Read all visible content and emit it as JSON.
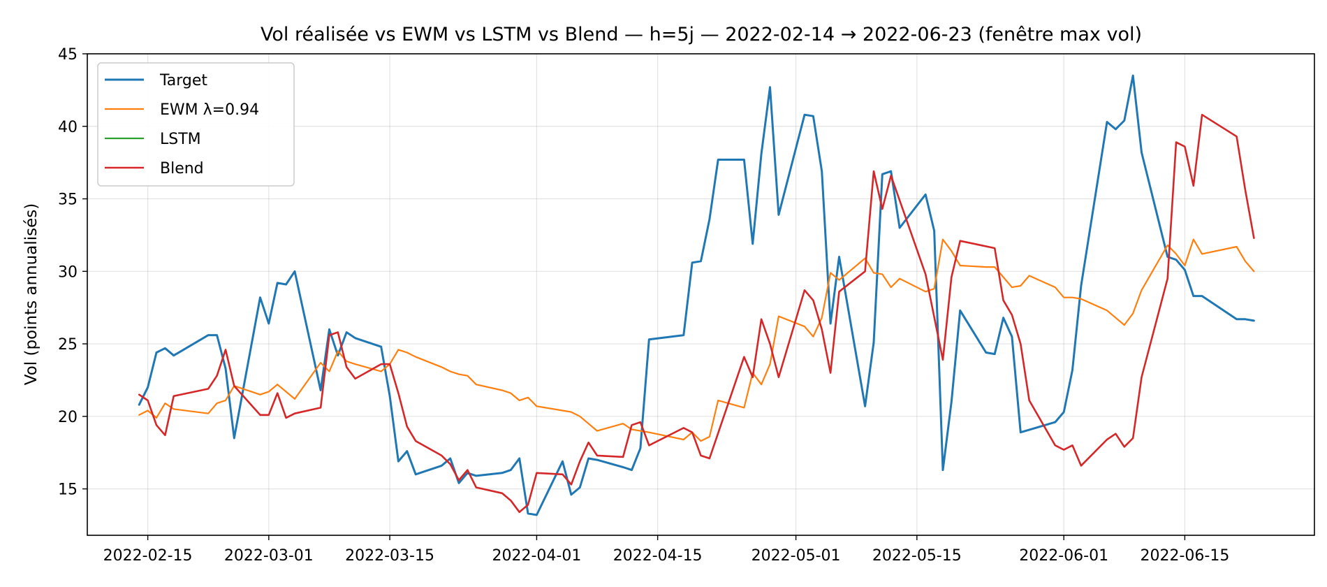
{
  "chart_data": {
    "type": "line",
    "title": "Vol réalisée vs EWM vs LSTM vs Blend — h=5j — 2022-02-14 → 2022-06-23 (fenêtre max vol)",
    "xlabel": "",
    "ylabel": "Vol (points annualisés)",
    "xlim": [
      "2022-02-08",
      "2022-06-30"
    ],
    "ylim": [
      11.8,
      45
    ],
    "grid": true,
    "legend_position": "upper-left",
    "x_ticks": [
      "2022-02-15",
      "2022-03-01",
      "2022-03-15",
      "2022-04-01",
      "2022-04-15",
      "2022-05-01",
      "2022-05-15",
      "2022-06-01",
      "2022-06-15"
    ],
    "y_ticks": [
      15,
      20,
      25,
      30,
      35,
      40,
      45
    ],
    "series": [
      {
        "name": "Target",
        "color": "#1f77b4",
        "points": [
          [
            "2022-02-14",
            20.8
          ],
          [
            "2022-02-15",
            22.0
          ],
          [
            "2022-02-16",
            24.4
          ],
          [
            "2022-02-17",
            24.7
          ],
          [
            "2022-02-18",
            24.2
          ],
          [
            "2022-02-22",
            25.6
          ],
          [
            "2022-02-23",
            25.6
          ],
          [
            "2022-02-24",
            23.3
          ],
          [
            "2022-02-25",
            18.5
          ],
          [
            "2022-02-28",
            28.2
          ],
          [
            "2022-03-01",
            26.4
          ],
          [
            "2022-03-02",
            29.2
          ],
          [
            "2022-03-03",
            29.1
          ],
          [
            "2022-03-04",
            30.0
          ],
          [
            "2022-03-07",
            21.8
          ],
          [
            "2022-03-08",
            26.0
          ],
          [
            "2022-03-09",
            24.2
          ],
          [
            "2022-03-10",
            25.8
          ],
          [
            "2022-03-11",
            25.4
          ],
          [
            "2022-03-14",
            24.8
          ],
          [
            "2022-03-15",
            21.4
          ],
          [
            "2022-03-16",
            16.9
          ],
          [
            "2022-03-17",
            17.6
          ],
          [
            "2022-03-18",
            16.0
          ],
          [
            "2022-03-21",
            16.6
          ],
          [
            "2022-03-22",
            17.1
          ],
          [
            "2022-03-23",
            15.4
          ],
          [
            "2022-03-24",
            16.1
          ],
          [
            "2022-03-25",
            15.9
          ],
          [
            "2022-03-28",
            16.1
          ],
          [
            "2022-03-29",
            16.3
          ],
          [
            "2022-03-30",
            17.1
          ],
          [
            "2022-03-31",
            13.3
          ],
          [
            "2022-04-01",
            13.2
          ],
          [
            "2022-04-04",
            16.9
          ],
          [
            "2022-04-05",
            14.6
          ],
          [
            "2022-04-06",
            15.1
          ],
          [
            "2022-04-07",
            17.1
          ],
          [
            "2022-04-08",
            17.0
          ],
          [
            "2022-04-11",
            16.5
          ],
          [
            "2022-04-12",
            16.3
          ],
          [
            "2022-04-13",
            17.8
          ],
          [
            "2022-04-14",
            25.3
          ],
          [
            "2022-04-18",
            25.6
          ],
          [
            "2022-04-19",
            30.6
          ],
          [
            "2022-04-20",
            30.7
          ],
          [
            "2022-04-21",
            33.6
          ],
          [
            "2022-04-22",
            37.7
          ],
          [
            "2022-04-25",
            37.7
          ],
          [
            "2022-04-26",
            31.9
          ],
          [
            "2022-04-27",
            38.1
          ],
          [
            "2022-04-28",
            42.7
          ],
          [
            "2022-04-29",
            33.9
          ],
          [
            "2022-05-02",
            40.8
          ],
          [
            "2022-05-03",
            40.7
          ],
          [
            "2022-05-04",
            36.9
          ],
          [
            "2022-05-05",
            26.4
          ],
          [
            "2022-05-06",
            31.0
          ],
          [
            "2022-05-09",
            20.7
          ],
          [
            "2022-05-10",
            25.1
          ],
          [
            "2022-05-11",
            36.7
          ],
          [
            "2022-05-12",
            36.9
          ],
          [
            "2022-05-13",
            33.0
          ],
          [
            "2022-05-16",
            35.3
          ],
          [
            "2022-05-17",
            32.8
          ],
          [
            "2022-05-18",
            16.3
          ],
          [
            "2022-05-19",
            21.0
          ],
          [
            "2022-05-20",
            27.3
          ],
          [
            "2022-05-23",
            24.4
          ],
          [
            "2022-05-24",
            24.3
          ],
          [
            "2022-05-25",
            26.8
          ],
          [
            "2022-05-26",
            25.5
          ],
          [
            "2022-05-27",
            18.9
          ],
          [
            "2022-05-31",
            19.6
          ],
          [
            "2022-06-01",
            20.3
          ],
          [
            "2022-06-02",
            23.2
          ],
          [
            "2022-06-03",
            29.0
          ],
          [
            "2022-06-06",
            40.3
          ],
          [
            "2022-06-07",
            39.8
          ],
          [
            "2022-06-08",
            40.4
          ],
          [
            "2022-06-09",
            43.5
          ],
          [
            "2022-06-10",
            38.2
          ],
          [
            "2022-06-13",
            31.0
          ],
          [
            "2022-06-14",
            30.8
          ],
          [
            "2022-06-15",
            30.1
          ],
          [
            "2022-06-16",
            28.3
          ],
          [
            "2022-06-17",
            28.3
          ],
          [
            "2022-06-21",
            26.7
          ],
          [
            "2022-06-22",
            26.7
          ],
          [
            "2022-06-23",
            26.6
          ]
        ]
      },
      {
        "name": "EWM λ=0.94",
        "color": "#ff7f0e",
        "points": [
          [
            "2022-02-14",
            20.1
          ],
          [
            "2022-02-15",
            20.4
          ],
          [
            "2022-02-16",
            19.9
          ],
          [
            "2022-02-17",
            20.9
          ],
          [
            "2022-02-18",
            20.5
          ],
          [
            "2022-02-22",
            20.2
          ],
          [
            "2022-02-23",
            20.9
          ],
          [
            "2022-02-24",
            21.1
          ],
          [
            "2022-02-25",
            22.1
          ],
          [
            "2022-02-28",
            21.5
          ],
          [
            "2022-03-01",
            21.7
          ],
          [
            "2022-03-02",
            22.2
          ],
          [
            "2022-03-03",
            21.7
          ],
          [
            "2022-03-04",
            21.2
          ],
          [
            "2022-03-07",
            23.7
          ],
          [
            "2022-03-08",
            23.1
          ],
          [
            "2022-03-09",
            24.5
          ],
          [
            "2022-03-10",
            23.8
          ],
          [
            "2022-03-11",
            23.6
          ],
          [
            "2022-03-14",
            23.1
          ],
          [
            "2022-03-15",
            23.6
          ],
          [
            "2022-03-16",
            24.6
          ],
          [
            "2022-03-17",
            24.4
          ],
          [
            "2022-03-18",
            24.1
          ],
          [
            "2022-03-21",
            23.4
          ],
          [
            "2022-03-22",
            23.1
          ],
          [
            "2022-03-23",
            22.9
          ],
          [
            "2022-03-24",
            22.8
          ],
          [
            "2022-03-25",
            22.2
          ],
          [
            "2022-03-28",
            21.8
          ],
          [
            "2022-03-29",
            21.6
          ],
          [
            "2022-03-30",
            21.1
          ],
          [
            "2022-03-31",
            21.3
          ],
          [
            "2022-04-01",
            20.7
          ],
          [
            "2022-04-04",
            20.4
          ],
          [
            "2022-04-05",
            20.3
          ],
          [
            "2022-04-06",
            20.0
          ],
          [
            "2022-04-07",
            19.5
          ],
          [
            "2022-04-08",
            19.0
          ],
          [
            "2022-04-11",
            19.5
          ],
          [
            "2022-04-12",
            19.1
          ],
          [
            "2022-04-13",
            19.0
          ],
          [
            "2022-04-14",
            18.9
          ],
          [
            "2022-04-18",
            18.4
          ],
          [
            "2022-04-19",
            18.9
          ],
          [
            "2022-04-20",
            18.3
          ],
          [
            "2022-04-21",
            18.6
          ],
          [
            "2022-04-22",
            21.1
          ],
          [
            "2022-04-25",
            20.6
          ],
          [
            "2022-04-26",
            23.0
          ],
          [
            "2022-04-27",
            22.2
          ],
          [
            "2022-04-28",
            23.6
          ],
          [
            "2022-04-29",
            26.9
          ],
          [
            "2022-05-02",
            26.2
          ],
          [
            "2022-05-03",
            25.5
          ],
          [
            "2022-05-04",
            26.8
          ],
          [
            "2022-05-05",
            29.9
          ],
          [
            "2022-05-06",
            29.4
          ],
          [
            "2022-05-09",
            30.9
          ],
          [
            "2022-05-10",
            29.9
          ],
          [
            "2022-05-11",
            29.8
          ],
          [
            "2022-05-12",
            28.9
          ],
          [
            "2022-05-13",
            29.5
          ],
          [
            "2022-05-16",
            28.6
          ],
          [
            "2022-05-17",
            28.8
          ],
          [
            "2022-05-18",
            32.2
          ],
          [
            "2022-05-19",
            31.4
          ],
          [
            "2022-05-20",
            30.4
          ],
          [
            "2022-05-23",
            30.3
          ],
          [
            "2022-05-24",
            30.3
          ],
          [
            "2022-05-25",
            29.6
          ],
          [
            "2022-05-26",
            28.9
          ],
          [
            "2022-05-27",
            29.0
          ],
          [
            "2022-05-28",
            29.7
          ],
          [
            "2022-05-31",
            28.9
          ],
          [
            "2022-06-01",
            28.2
          ],
          [
            "2022-06-02",
            28.2
          ],
          [
            "2022-06-03",
            28.1
          ],
          [
            "2022-06-06",
            27.3
          ],
          [
            "2022-06-07",
            26.8
          ],
          [
            "2022-06-08",
            26.3
          ],
          [
            "2022-06-09",
            27.1
          ],
          [
            "2022-06-10",
            28.7
          ],
          [
            "2022-06-13",
            31.8
          ],
          [
            "2022-06-14",
            31.2
          ],
          [
            "2022-06-15",
            30.4
          ],
          [
            "2022-06-16",
            32.2
          ],
          [
            "2022-06-17",
            31.2
          ],
          [
            "2022-06-21",
            31.7
          ],
          [
            "2022-06-22",
            30.7
          ],
          [
            "2022-06-23",
            30.0
          ]
        ]
      },
      {
        "name": "LSTM",
        "color": "#2ca02c",
        "points": []
      },
      {
        "name": "Blend",
        "color": "#d62728",
        "points": [
          [
            "2022-02-14",
            21.5
          ],
          [
            "2022-02-15",
            21.1
          ],
          [
            "2022-02-16",
            19.4
          ],
          [
            "2022-02-17",
            18.7
          ],
          [
            "2022-02-18",
            21.4
          ],
          [
            "2022-02-22",
            21.9
          ],
          [
            "2022-02-23",
            22.8
          ],
          [
            "2022-02-24",
            24.6
          ],
          [
            "2022-02-25",
            22.1
          ],
          [
            "2022-02-28",
            20.1
          ],
          [
            "2022-03-01",
            20.1
          ],
          [
            "2022-03-02",
            21.6
          ],
          [
            "2022-03-03",
            19.9
          ],
          [
            "2022-03-04",
            20.2
          ],
          [
            "2022-03-07",
            20.6
          ],
          [
            "2022-03-08",
            25.6
          ],
          [
            "2022-03-09",
            25.8
          ],
          [
            "2022-03-10",
            23.4
          ],
          [
            "2022-03-11",
            22.6
          ],
          [
            "2022-03-14",
            23.6
          ],
          [
            "2022-03-15",
            23.6
          ],
          [
            "2022-03-16",
            21.6
          ],
          [
            "2022-03-17",
            19.3
          ],
          [
            "2022-03-18",
            18.3
          ],
          [
            "2022-03-21",
            17.3
          ],
          [
            "2022-03-22",
            16.7
          ],
          [
            "2022-03-23",
            15.6
          ],
          [
            "2022-03-24",
            16.3
          ],
          [
            "2022-03-25",
            15.1
          ],
          [
            "2022-03-28",
            14.7
          ],
          [
            "2022-03-29",
            14.2
          ],
          [
            "2022-03-30",
            13.4
          ],
          [
            "2022-03-31",
            13.9
          ],
          [
            "2022-04-01",
            16.1
          ],
          [
            "2022-04-04",
            16.0
          ],
          [
            "2022-04-05",
            15.3
          ],
          [
            "2022-04-06",
            16.9
          ],
          [
            "2022-04-07",
            18.2
          ],
          [
            "2022-04-08",
            17.3
          ],
          [
            "2022-04-11",
            17.2
          ],
          [
            "2022-04-12",
            19.4
          ],
          [
            "2022-04-13",
            19.6
          ],
          [
            "2022-04-14",
            18.0
          ],
          [
            "2022-04-18",
            19.2
          ],
          [
            "2022-04-19",
            18.9
          ],
          [
            "2022-04-20",
            17.3
          ],
          [
            "2022-04-21",
            17.1
          ],
          [
            "2022-04-25",
            24.1
          ],
          [
            "2022-04-26",
            22.7
          ],
          [
            "2022-04-27",
            26.7
          ],
          [
            "2022-04-28",
            25.0
          ],
          [
            "2022-04-29",
            22.7
          ],
          [
            "2022-05-02",
            28.7
          ],
          [
            "2022-05-03",
            28.0
          ],
          [
            "2022-05-04",
            26.0
          ],
          [
            "2022-05-05",
            23.0
          ],
          [
            "2022-05-06",
            28.6
          ],
          [
            "2022-05-09",
            30.0
          ],
          [
            "2022-05-10",
            36.9
          ],
          [
            "2022-05-11",
            34.3
          ],
          [
            "2022-05-12",
            36.6
          ],
          [
            "2022-05-16",
            29.8
          ],
          [
            "2022-05-18",
            23.9
          ],
          [
            "2022-05-19",
            29.6
          ],
          [
            "2022-05-20",
            32.1
          ],
          [
            "2022-05-24",
            31.6
          ],
          [
            "2022-05-25",
            28.0
          ],
          [
            "2022-05-26",
            27.0
          ],
          [
            "2022-05-27",
            25.0
          ],
          [
            "2022-05-28",
            21.1
          ],
          [
            "2022-05-31",
            18.0
          ],
          [
            "2022-06-01",
            17.7
          ],
          [
            "2022-06-02",
            18.0
          ],
          [
            "2022-06-03",
            16.6
          ],
          [
            "2022-06-06",
            18.4
          ],
          [
            "2022-06-07",
            18.8
          ],
          [
            "2022-06-08",
            17.9
          ],
          [
            "2022-06-09",
            18.5
          ],
          [
            "2022-06-10",
            22.7
          ],
          [
            "2022-06-13",
            29.5
          ],
          [
            "2022-06-14",
            38.9
          ],
          [
            "2022-06-15",
            38.6
          ],
          [
            "2022-06-16",
            35.9
          ],
          [
            "2022-06-17",
            40.8
          ],
          [
            "2022-06-21",
            39.3
          ],
          [
            "2022-06-22",
            35.6
          ],
          [
            "2022-06-23",
            32.3
          ]
        ]
      }
    ]
  }
}
